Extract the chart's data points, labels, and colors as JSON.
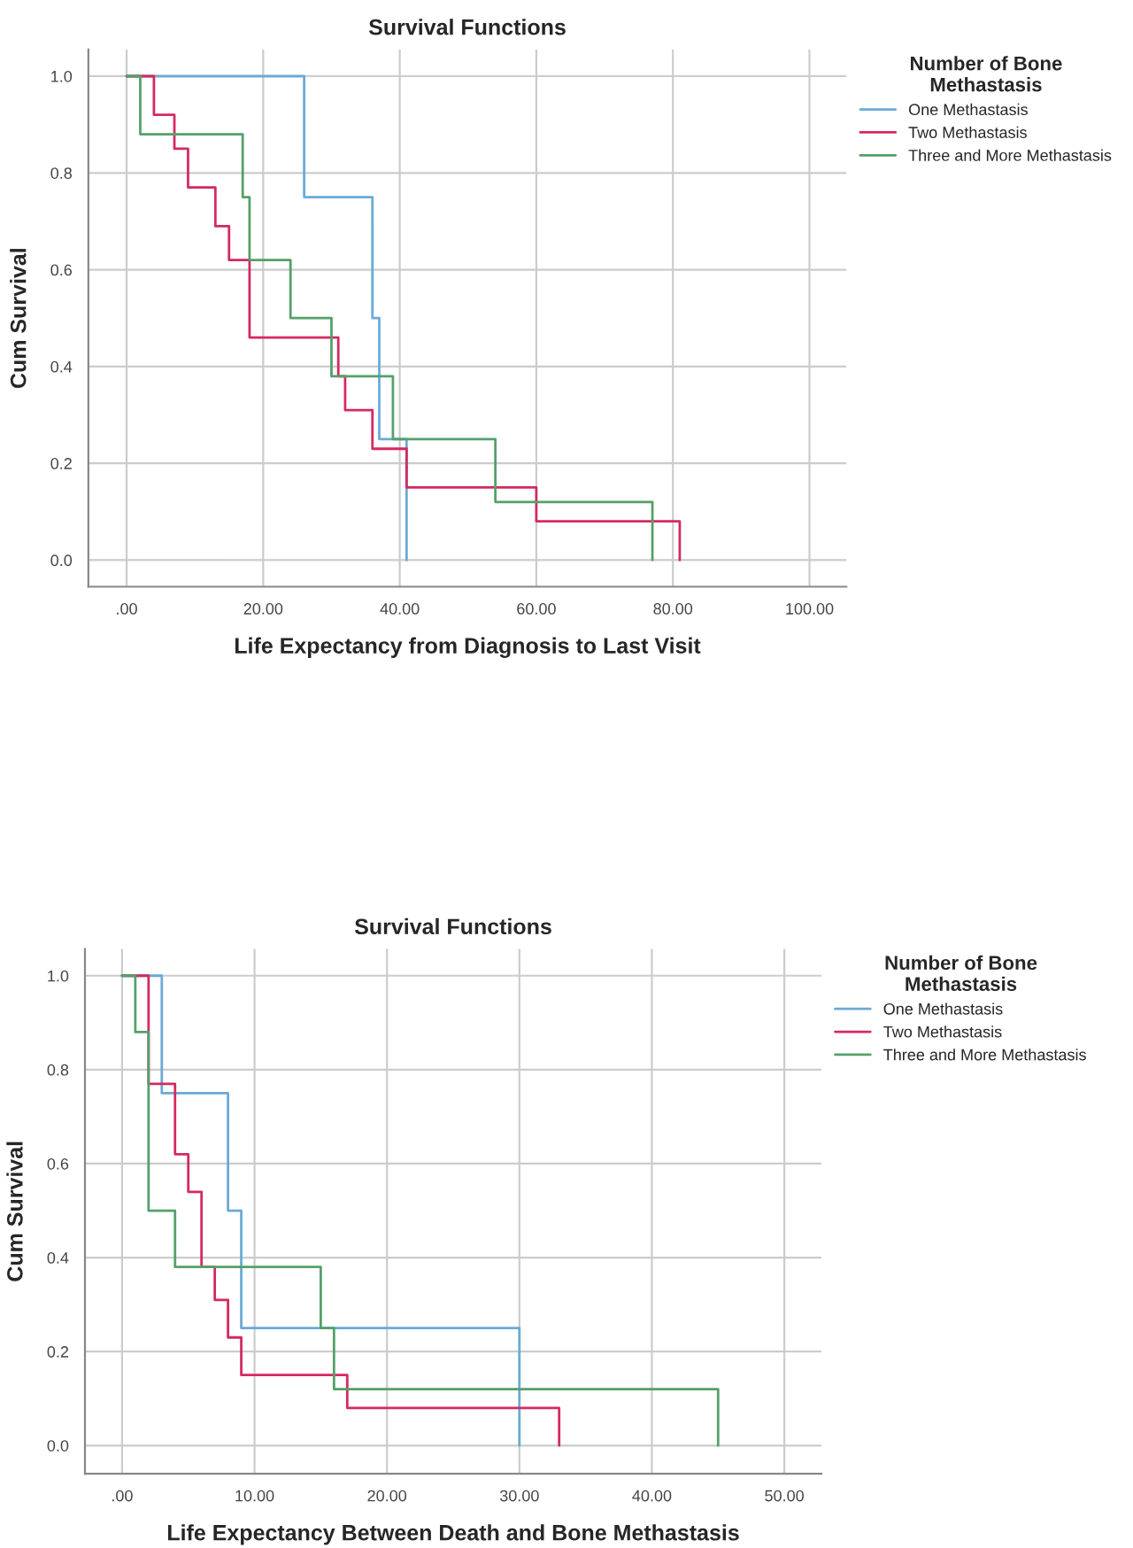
{
  "chart_data": [
    {
      "type": "step",
      "title": "Survival Functions",
      "xlabel": "Life Expectancy from Diagnosis to Last Visit",
      "ylabel": "Cum Survival",
      "legend_title": "Number of Bone\nMethastasis",
      "legend": "top right",
      "grid": true,
      "xlim": [
        -5.6,
        105.4
      ],
      "xticks": [
        {
          "value": 0,
          "label": ".00"
        },
        {
          "value": 20,
          "label": "20.00"
        },
        {
          "value": 40,
          "label": "40.00"
        },
        {
          "value": 60,
          "label": "60.00"
        },
        {
          "value": 80,
          "label": "80.00"
        },
        {
          "value": 100,
          "label": "100.00"
        }
      ],
      "ylim": [
        -0.055,
        1.055
      ],
      "yticks": [
        {
          "value": 0,
          "label": "0.0"
        },
        {
          "value": 0.2,
          "label": "0.2"
        },
        {
          "value": 0.4,
          "label": "0.4"
        },
        {
          "value": 0.6,
          "label": "0.6"
        },
        {
          "value": 0.8,
          "label": "0.8"
        },
        {
          "value": 1,
          "label": "1.0"
        }
      ],
      "series": [
        {
          "name": "One Methastasis",
          "color": "#6aaad6",
          "x": [
            0,
            26,
            36,
            37,
            41
          ],
          "values": [
            1.0,
            0.75,
            0.5,
            0.25,
            0.0
          ]
        },
        {
          "name": "Two Methastasis",
          "color": "#d42a5e",
          "x": [
            0,
            4,
            7,
            9,
            13,
            15,
            18,
            31,
            32,
            36,
            41,
            60,
            81
          ],
          "values": [
            1.0,
            0.92,
            0.85,
            0.77,
            0.69,
            0.62,
            0.46,
            0.38,
            0.31,
            0.23,
            0.15,
            0.08,
            0.0
          ]
        },
        {
          "name": "Three and More Methastasis",
          "color": "#55a06a",
          "x": [
            0,
            2,
            17,
            18,
            24,
            30,
            39,
            54,
            77
          ],
          "values": [
            1.0,
            0.88,
            0.75,
            0.62,
            0.5,
            0.38,
            0.25,
            0.12,
            0.0
          ]
        }
      ]
    },
    {
      "type": "step",
      "title": "Survival Functions",
      "xlabel": "Life Expectancy Between Death and Bone Methastasis",
      "ylabel": "Cum Survival",
      "legend_title": "Number of Bone\nMethastasis",
      "legend": "top right",
      "grid": true,
      "xlim": [
        -2.8,
        52.8
      ],
      "xticks": [
        {
          "value": 0,
          "label": ".00"
        },
        {
          "value": 10,
          "label": "10.00"
        },
        {
          "value": 20,
          "label": "20.00"
        },
        {
          "value": 30,
          "label": "30.00"
        },
        {
          "value": 40,
          "label": "40.00"
        },
        {
          "value": 50,
          "label": "50.00"
        }
      ],
      "ylim": [
        -0.06,
        1.057
      ],
      "yticks": [
        {
          "value": 0,
          "label": "0.0"
        },
        {
          "value": 0.2,
          "label": "0.2"
        },
        {
          "value": 0.4,
          "label": "0.4"
        },
        {
          "value": 0.6,
          "label": "0.6"
        },
        {
          "value": 0.8,
          "label": "0.8"
        },
        {
          "value": 1,
          "label": "1.0"
        }
      ],
      "series": [
        {
          "name": "One Methastasis",
          "color": "#6aaad6",
          "x": [
            0,
            3,
            8,
            9,
            30
          ],
          "values": [
            1.0,
            0.75,
            0.5,
            0.25,
            0.0
          ]
        },
        {
          "name": "Two Methastasis",
          "color": "#d42a5e",
          "x": [
            0,
            2,
            4,
            5,
            6,
            7,
            8,
            9,
            17,
            33
          ],
          "values": [
            1.0,
            0.77,
            0.62,
            0.54,
            0.38,
            0.31,
            0.23,
            0.15,
            0.08,
            0.0
          ]
        },
        {
          "name": "Three and More Methastasis",
          "color": "#55a06a",
          "x": [
            0,
            1,
            2,
            4,
            15,
            16,
            45
          ],
          "values": [
            1.0,
            0.88,
            0.5,
            0.38,
            0.25,
            0.12,
            0.0
          ]
        }
      ]
    }
  ]
}
